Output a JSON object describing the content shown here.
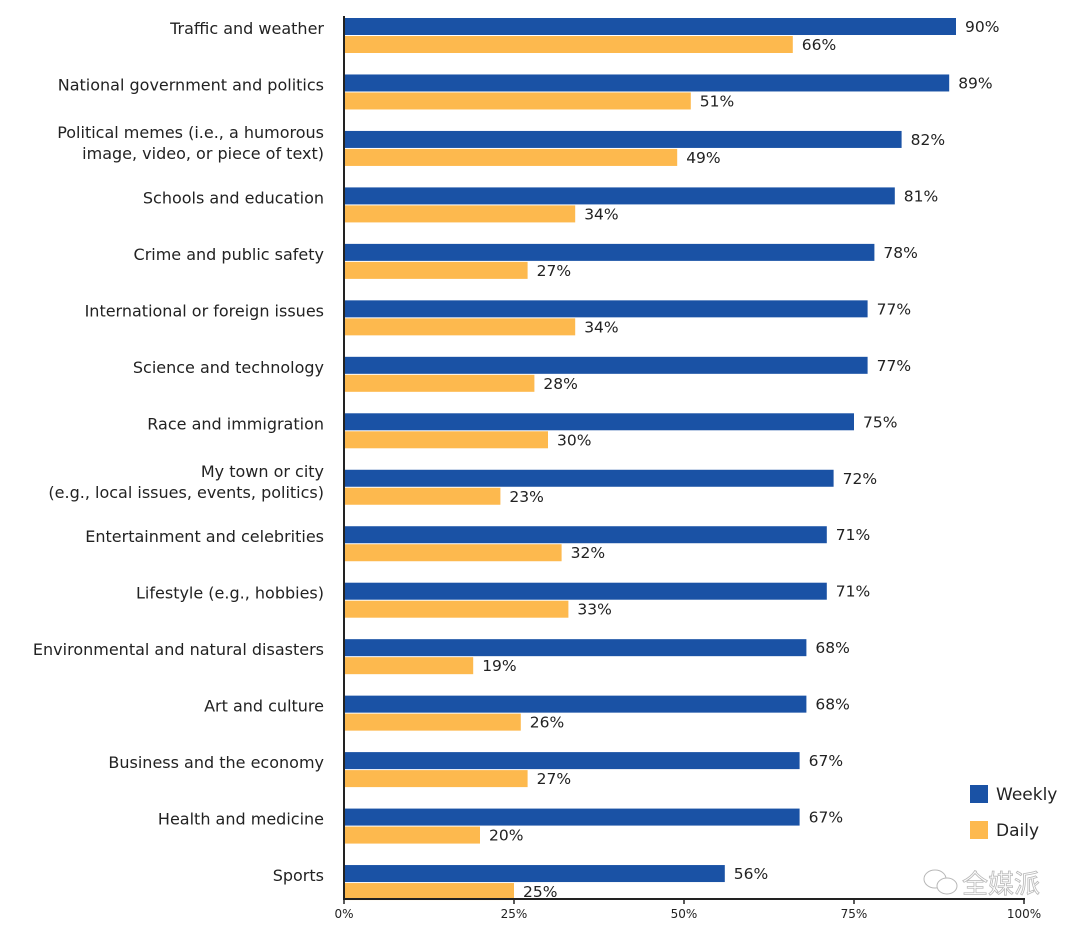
{
  "chart_data": {
    "type": "bar",
    "orientation": "horizontal",
    "title": "",
    "xlabel": "",
    "ylabel": "",
    "xlim": [
      0,
      100
    ],
    "grid": false,
    "legend_position": "bottom-right",
    "categories": [
      [
        "Traffic and weather"
      ],
      [
        "National government and politics"
      ],
      [
        "Political memes (i.e., a humorous",
        "image, video, or piece of text)"
      ],
      [
        "Schools and education"
      ],
      [
        "Crime and public safety"
      ],
      [
        "International or foreign issues"
      ],
      [
        "Science and technology"
      ],
      [
        "Race and immigration"
      ],
      [
        "My town or city",
        "(e.g., local issues, events, politics)"
      ],
      [
        "Entertainment and celebrities"
      ],
      [
        "Lifestyle (e.g., hobbies)"
      ],
      [
        "Environmental and natural disasters"
      ],
      [
        "Art and culture"
      ],
      [
        "Business and the economy"
      ],
      [
        "Health and medicine"
      ],
      [
        "Sports"
      ]
    ],
    "series": [
      {
        "name": "Weekly",
        "color": "#1a52a5",
        "values": [
          90,
          89,
          82,
          81,
          78,
          77,
          77,
          75,
          72,
          71,
          71,
          68,
          68,
          67,
          67,
          56
        ]
      },
      {
        "name": "Daily",
        "color": "#fdb94e",
        "values": [
          66,
          51,
          49,
          34,
          27,
          34,
          28,
          30,
          23,
          32,
          33,
          19,
          26,
          27,
          20,
          25
        ]
      }
    ],
    "value_suffix": "%",
    "x_ticks": [
      0,
      25,
      50,
      75,
      100
    ],
    "x_tick_labels": [
      "0%",
      "25%",
      "50%",
      "75%",
      "100%"
    ]
  },
  "watermark": {
    "text": "全媒派",
    "icon": "wechat-icon"
  }
}
